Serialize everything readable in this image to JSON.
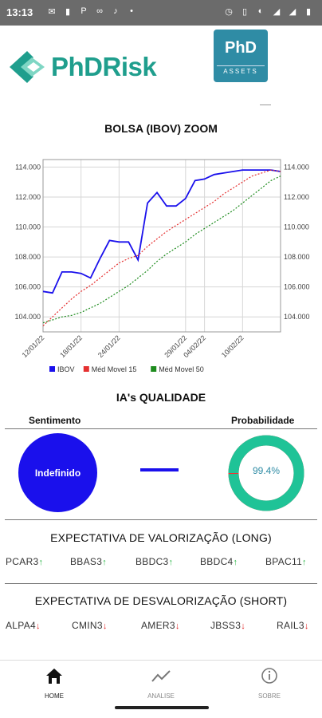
{
  "status_bar": {
    "time": "13:13",
    "left_icons": [
      "gmail-icon",
      "phone-icon",
      "paypal-icon",
      "infinity-icon",
      "tiktok-icon",
      "dot-icon"
    ],
    "right_icons": [
      "alarm-icon",
      "vibrate-icon",
      "lte-icon",
      "signal-icon",
      "4g-icon",
      "signal-icon",
      "battery-icon"
    ]
  },
  "header": {
    "logo_part1": "PhD",
    "logo_part2": "Risk",
    "badge_top": "PhD",
    "badge_bottom": "ASSETS"
  },
  "chart": {
    "title": "BOLSA (IBOV) ZOOM"
  },
  "chart_data": {
    "type": "line",
    "title": "BOLSA (IBOV) ZOOM",
    "x": [
      "12/01/22",
      "13/01/22",
      "14/01/22",
      "17/01/22",
      "18/01/22",
      "19/01/22",
      "20/01/22",
      "21/01/22",
      "24/01/22",
      "25/01/22",
      "26/01/22",
      "27/01/22",
      "28/01/22",
      "31/01/22",
      "01/02/22",
      "02/02/22",
      "03/02/22",
      "04/02/22",
      "07/02/22",
      "08/02/22",
      "09/02/22",
      "10/02/22",
      "11/02/22",
      "14/02/22",
      "15/02/22",
      "16/02/22"
    ],
    "xticks": [
      "12/01/22",
      "18/01/22",
      "24/01/22",
      "29/01/22",
      "04/02/22",
      "10/02/22"
    ],
    "ylim": [
      103000,
      114500
    ],
    "yticks": [
      "104.000",
      "106.000",
      "108.000",
      "110.000",
      "112.000",
      "114.000"
    ],
    "series": [
      {
        "name": "IBOV",
        "color": "#1a10ec",
        "values": [
          105.7,
          105.6,
          107.0,
          107.0,
          106.9,
          106.6,
          107.9,
          109.1,
          109.0,
          109.0,
          107.8,
          111.6,
          112.3,
          111.4,
          111.4,
          111.9,
          113.1,
          113.2,
          113.5,
          113.6,
          113.7,
          113.8,
          113.8,
          113.8,
          113.8,
          113.7
        ]
      },
      {
        "name": "Méd Movel 15",
        "color": "#e53030",
        "values": [
          103.4,
          104.0,
          104.6,
          105.2,
          105.7,
          106.1,
          106.6,
          107.1,
          107.6,
          107.9,
          108.1,
          108.7,
          109.2,
          109.7,
          110.1,
          110.5,
          110.9,
          111.3,
          111.7,
          112.2,
          112.6,
          113.0,
          113.4,
          113.6,
          113.8,
          113.7
        ]
      },
      {
        "name": "Méd Movel 50",
        "color": "#1e8c1e",
        "values": [
          103.6,
          103.8,
          104.0,
          104.1,
          104.3,
          104.6,
          104.9,
          105.3,
          105.7,
          106.1,
          106.6,
          107.1,
          107.7,
          108.2,
          108.6,
          109.0,
          109.5,
          109.9,
          110.3,
          110.7,
          111.1,
          111.6,
          112.1,
          112.6,
          113.1,
          113.4
        ]
      }
    ],
    "legend_position": "bottom",
    "grid": true
  },
  "ia": {
    "title": "IA's QUALIDADE",
    "sentiment_label": "Sentimento",
    "probability_label": "Probabilidade",
    "sentiment_value": "Indefinido",
    "probability_text": "99.4%",
    "probability_fraction": 0.994,
    "sentiment_color": "#1a10ec",
    "probability_color": "#1fc397"
  },
  "long": {
    "title": "EXPECTATIVA DE VALORIZAÇÃO (LONG)",
    "tickers": [
      "PCAR3",
      "BBAS3",
      "BBDC3",
      "BBDC4",
      "BPAC11"
    ],
    "arrow": "↑"
  },
  "short": {
    "title": "EXPECTATIVA DE DESVALORIZAÇÃO (SHORT)",
    "tickers": [
      "ALPA4",
      "CMIN3",
      "AMER3",
      "JBSS3",
      "RAIL3"
    ],
    "arrow": "↓"
  },
  "nav": {
    "home": "HOME",
    "analise": "ANALISE",
    "sobre": "SOBRE"
  }
}
